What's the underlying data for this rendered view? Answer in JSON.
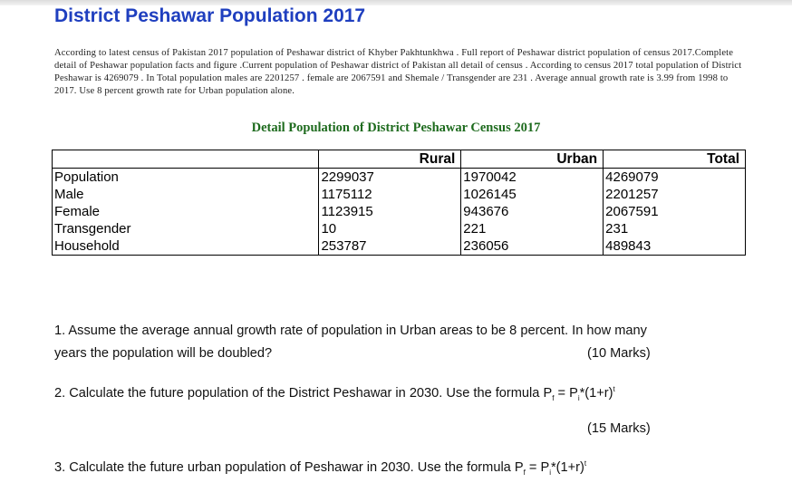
{
  "header": {
    "title": "District Peshawar Population 2017",
    "intro": "According to latest census of Pakistan 2017 population of Peshawar district of Khyber Pakhtunkhwa . Full report of Peshawar district population of census 2017.Complete detail of Peshawar population facts and figure .Current population of Peshawar district of Pakistan all detail of census . According to census 2017 total population of District Peshawar is 4269079 . In Total population males are 2201257 . female are 2067591 and Shemale / Transgender are 231 . Average annual growth rate is 3.99 from 1998 to 2017. Use 8 percent growth rate for Urban population alone."
  },
  "table": {
    "subtitle": "Detail Population of District Peshawar Census 2017",
    "columns": [
      "",
      "Rural",
      "Urban",
      "Total"
    ],
    "rows": [
      {
        "label": "Population",
        "rural": "2299037",
        "urban": "1970042",
        "total": "4269079"
      },
      {
        "label": "Male",
        "rural": "1175112",
        "urban": "1026145",
        "total": "2201257"
      },
      {
        "label": "Female",
        "rural": "1123915",
        "urban": "943676",
        "total": "2067591"
      },
      {
        "label": "Transgender",
        "rural": "10",
        "urban": "221",
        "total": "231"
      },
      {
        "label": "Household",
        "rural": "253787",
        "urban": "236056",
        "total": "489843"
      }
    ]
  },
  "questions": {
    "q1_line1": "1. Assume the average annual growth rate of population in  Urban areas to be 8 percent. In how many",
    "q1_line2": "years the population will be doubled?",
    "q1_marks": "(10 Marks)",
    "q2_text": "2. Calculate the future population of the District  Peshawar  in 2030. Use the formula P",
    "q2_sub_f": "f",
    "q2_eq": " = P",
    "q2_sub_i": "i",
    "q2_tail": "*(1+r)",
    "q2_sup_t": "t",
    "q2_marks": "(15 Marks)",
    "q3_text": "3. Calculate the future urban population of Peshawar in 2030. Use the formula P",
    "q3_sub_f": "f",
    "q3_eq": " = P",
    "q3_sub_i": "i",
    "q3_tail": "*(1+r)",
    "q3_sup_t": "t"
  }
}
